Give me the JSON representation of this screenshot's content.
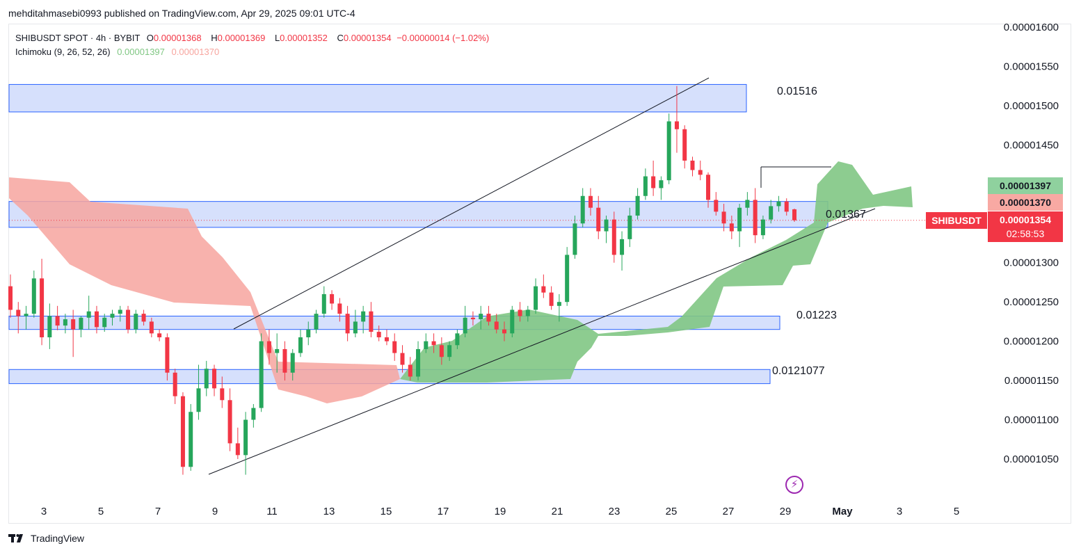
{
  "header": {
    "publish_text": "mehditahmasebi0993 published on TradingView.com, Apr 29, 2025 09:01 UTC-4"
  },
  "legend": {
    "symbol_line": "SHIBUSDT SPOT · 4h · BYBIT",
    "open_label": "O",
    "open": "0.00001368",
    "high_label": "H",
    "high": "0.00001369",
    "low_label": "L",
    "low": "0.00001352",
    "close_label": "C",
    "close": "0.00001354",
    "change": "−0.00000014 (−1.02%)",
    "indicator_name": "Ichimoku (9, 26, 52, 26)",
    "indicator_val_1": "0.00001397",
    "indicator_val_2": "0.00001370"
  },
  "price_tags": {
    "upper": "0.00001397",
    "lower": "0.00001370",
    "last": "0.00001354",
    "countdown": "02:58:53",
    "symbol": "SHIBUSDT"
  },
  "footer": {
    "brand": "TradingView"
  },
  "colors": {
    "up": "#089981",
    "up_candle": "#26a65b",
    "down": "#f23645",
    "zone_fill": "#d4defc",
    "zone_border": "#2962ff",
    "cloud_bull": "#81c784",
    "cloud_bear": "#f7a59f"
  },
  "chart_data": {
    "type": "candlestick",
    "symbol": "SHIBUSDT",
    "timeframe": "4h",
    "y_axis": {
      "range": [
        1.01e-05,
        1.62e-05
      ],
      "ticks": [
        "0.00001600",
        "0.00001550",
        "0.00001500",
        "0.00001450",
        "0.00001400",
        "0.00001350",
        "0.00001300",
        "0.00001250",
        "0.00001200",
        "0.00001150",
        "0.00001100",
        "0.00001050"
      ]
    },
    "x_axis": {
      "ticks": [
        "3",
        "5",
        "7",
        "9",
        "11",
        "13",
        "15",
        "17",
        "19",
        "21",
        "23",
        "25",
        "27",
        "29",
        "May",
        "3",
        "5"
      ]
    },
    "zones": [
      {
        "label": "0.01516",
        "low": 1.492e-05,
        "high": 1.527e-05
      },
      {
        "label": "0.01367",
        "low": 1.345e-05,
        "high": 1.378e-05
      },
      {
        "label": "0.01223",
        "low": 1.215e-05,
        "high": 1.232e-05
      },
      {
        "label": "0.0121077",
        "low": 1.146e-05,
        "high": 1.164e-05
      }
    ],
    "trendlines": [
      {
        "from": [
          "Apr 9",
          1.032e-05
        ],
        "to": [
          "May 1",
          1.379e-05
        ]
      },
      {
        "from": [
          "Apr 9",
          1.212e-05
        ],
        "to": [
          "Apr 26",
          1.536e-05
        ]
      },
      {
        "from": [
          "Apr 28",
          1.421e-05
        ],
        "to": [
          "Apr 30",
          1.421e-05
        ]
      }
    ],
    "current_price": 1.354e-05,
    "candles_ohlc": [
      [
        1.27e-05,
        1.285e-05,
        1.23e-05,
        1.24e-05
      ],
      [
        1.24e-05,
        1.25e-05,
        1.21e-05,
        1.232e-05
      ],
      [
        1.232e-05,
        1.245e-05,
        1.215e-05,
        1.235e-05
      ],
      [
        1.235e-05,
        1.29e-05,
        1.23e-05,
        1.28e-05
      ],
      [
        1.28e-05,
        1.305e-05,
        1.195e-05,
        1.205e-05
      ],
      [
        1.205e-05,
        1.248e-05,
        1.19e-05,
        1.232e-05
      ],
      [
        1.232e-05,
        1.245e-05,
        1.214e-05,
        1.22e-05
      ],
      [
        1.22e-05,
        1.235e-05,
        1.21e-05,
        1.228e-05
      ],
      [
        1.228e-05,
        1.24e-05,
        1.18e-05,
        1.215e-05
      ],
      [
        1.215e-05,
        1.232e-05,
        1.205e-05,
        1.23e-05
      ],
      [
        1.23e-05,
        1.258e-05,
        1.215e-05,
        1.238e-05
      ],
      [
        1.238e-05,
        1.245e-05,
        1.21e-05,
        1.218e-05
      ],
      [
        1.218e-05,
        1.235e-05,
        1.212e-05,
        1.23e-05
      ],
      [
        1.23e-05,
        1.24e-05,
        1.22e-05,
        1.235e-05
      ],
      [
        1.235e-05,
        1.245e-05,
        1.225e-05,
        1.24e-05
      ],
      [
        1.24e-05,
        1.245e-05,
        1.21e-05,
        1.215e-05
      ],
      [
        1.215e-05,
        1.24e-05,
        1.21e-05,
        1.235e-05
      ],
      [
        1.235e-05,
        1.24e-05,
        1.22e-05,
        1.225e-05
      ],
      [
        1.225e-05,
        1.23e-05,
        1.205e-05,
        1.21e-05
      ],
      [
        1.21e-05,
        1.215e-05,
        1.2e-05,
        1.205e-05
      ],
      [
        1.205e-05,
        1.21e-05,
        1.15e-05,
        1.16e-05
      ],
      [
        1.16e-05,
        1.165e-05,
        1.12e-05,
        1.13e-05
      ],
      [
        1.13e-05,
        1.135e-05,
        1.03e-05,
        1.04e-05
      ],
      [
        1.04e-05,
        1.12e-05,
        1.035e-05,
        1.11e-05
      ],
      [
        1.11e-05,
        1.17e-05,
        1.1e-05,
        1.14e-05
      ],
      [
        1.14e-05,
        1.175e-05,
        1.13e-05,
        1.165e-05
      ],
      [
        1.165e-05,
        1.17e-05,
        1.13e-05,
        1.14e-05
      ],
      [
        1.14e-05,
        1.155e-05,
        1.115e-05,
        1.125e-05
      ],
      [
        1.125e-05,
        1.14e-05,
        1.06e-05,
        1.07e-05
      ],
      [
        1.07e-05,
        1.09e-05,
        1.05e-05,
        1.055e-05
      ],
      [
        1.055e-05,
        1.11e-05,
        1.03e-05,
        1.1e-05
      ],
      [
        1.1e-05,
        1.12e-05,
        1.09e-05,
        1.115e-05
      ],
      [
        1.115e-05,
        1.21e-05,
        1.11e-05,
        1.2e-05
      ],
      [
        1.2e-05,
        1.215e-05,
        1.17e-05,
        1.185e-05
      ],
      [
        1.185e-05,
        1.21e-05,
        1.16e-05,
        1.19e-05
      ],
      [
        1.19e-05,
        1.2e-05,
        1.15e-05,
        1.16e-05
      ],
      [
        1.16e-05,
        1.19e-05,
        1.15e-05,
        1.185e-05
      ],
      [
        1.185e-05,
        1.215e-05,
        1.18e-05,
        1.205e-05
      ],
      [
        1.205e-05,
        1.225e-05,
        1.195e-05,
        1.215e-05
      ],
      [
        1.215e-05,
        1.24e-05,
        1.21e-05,
        1.235e-05
      ],
      [
        1.235e-05,
        1.27e-05,
        1.23e-05,
        1.26e-05
      ],
      [
        1.26e-05,
        1.265e-05,
        1.24e-05,
        1.248e-05
      ],
      [
        1.248e-05,
        1.255e-05,
        1.225e-05,
        1.235e-05
      ],
      [
        1.235e-05,
        1.245e-05,
        1.2e-05,
        1.21e-05
      ],
      [
        1.21e-05,
        1.24e-05,
        1.205e-05,
        1.225e-05
      ],
      [
        1.225e-05,
        1.245e-05,
        1.21e-05,
        1.238e-05
      ],
      [
        1.238e-05,
        1.25e-05,
        1.205e-05,
        1.212e-05
      ],
      [
        1.212e-05,
        1.22e-05,
        1.2e-05,
        1.205e-05
      ],
      [
        1.205e-05,
        1.215e-05,
        1.195e-05,
        1.2e-05
      ],
      [
        1.2e-05,
        1.21e-05,
        1.175e-05,
        1.185e-05
      ],
      [
        1.185e-05,
        1.195e-05,
        1.16e-05,
        1.17e-05
      ],
      [
        1.17e-05,
        1.18e-05,
        1.15e-05,
        1.155e-05
      ],
      [
        1.155e-05,
        1.2e-05,
        1.15e-05,
        1.19e-05
      ],
      [
        1.19e-05,
        1.21e-05,
        1.185e-05,
        1.2e-05
      ],
      [
        1.2e-05,
        1.21e-05,
        1.185e-05,
        1.195e-05
      ],
      [
        1.195e-05,
        1.205e-05,
        1.17e-05,
        1.18e-05
      ],
      [
        1.18e-05,
        1.2e-05,
        1.175e-05,
        1.195e-05
      ],
      [
        1.195e-05,
        1.215e-05,
        1.19e-05,
        1.21e-05
      ],
      [
        1.21e-05,
        1.245e-05,
        1.205e-05,
        1.23e-05
      ],
      [
        1.23e-05,
        1.238e-05,
        1.22e-05,
        1.228e-05
      ],
      [
        1.228e-05,
        1.245e-05,
        1.215e-05,
        1.235e-05
      ],
      [
        1.235e-05,
        1.245e-05,
        1.22e-05,
        1.225e-05
      ],
      [
        1.225e-05,
        1.235e-05,
        1.21e-05,
        1.215e-05
      ],
      [
        1.215e-05,
        1.225e-05,
        1.2e-05,
        1.21e-05
      ],
      [
        1.21e-05,
        1.245e-05,
        1.205e-05,
        1.24e-05
      ],
      [
        1.24e-05,
        1.25e-05,
        1.225e-05,
        1.232e-05
      ],
      [
        1.232e-05,
        1.245e-05,
        1.225e-05,
        1.24e-05
      ],
      [
        1.24e-05,
        1.28e-05,
        1.235e-05,
        1.27e-05
      ],
      [
        1.27e-05,
        1.285e-05,
        1.255e-05,
        1.262e-05
      ],
      [
        1.262e-05,
        1.27e-05,
        1.24e-05,
        1.245e-05
      ],
      [
        1.245e-05,
        1.26e-05,
        1.225e-05,
        1.25e-05
      ],
      [
        1.25e-05,
        1.32e-05,
        1.245e-05,
        1.31e-05
      ],
      [
        1.31e-05,
        1.36e-05,
        1.305e-05,
        1.35e-05
      ],
      [
        1.35e-05,
        1.395e-05,
        1.345e-05,
        1.385e-05
      ],
      [
        1.385e-05,
        1.395e-05,
        1.36e-05,
        1.37e-05
      ],
      [
        1.37e-05,
        1.385e-05,
        1.33e-05,
        1.34e-05
      ],
      [
        1.34e-05,
        1.36e-05,
        1.325e-05,
        1.355e-05
      ],
      [
        1.355e-05,
        1.365e-05,
        1.3e-05,
        1.31e-05
      ],
      [
        1.31e-05,
        1.34e-05,
        1.29e-05,
        1.33e-05
      ],
      [
        1.33e-05,
        1.37e-05,
        1.32e-05,
        1.36e-05
      ],
      [
        1.36e-05,
        1.395e-05,
        1.355e-05,
        1.385e-05
      ],
      [
        1.385e-05,
        1.42e-05,
        1.38e-05,
        1.41e-05
      ],
      [
        1.41e-05,
        1.43e-05,
        1.385e-05,
        1.395e-05
      ],
      [
        1.395e-05,
        1.41e-05,
        1.38e-05,
        1.405e-05
      ],
      [
        1.405e-05,
        1.49e-05,
        1.4e-05,
        1.48e-05
      ],
      [
        1.48e-05,
        1.525e-05,
        1.44e-05,
        1.47e-05
      ],
      [
        1.47e-05,
        1.475e-05,
        1.42e-05,
        1.43e-05
      ],
      [
        1.43e-05,
        1.435e-05,
        1.41e-05,
        1.418e-05
      ],
      [
        1.418e-05,
        1.43e-05,
        1.405e-05,
        1.412e-05
      ],
      [
        1.412e-05,
        1.415e-05,
        1.37e-05,
        1.38e-05
      ],
      [
        1.38e-05,
        1.39e-05,
        1.36e-05,
        1.365e-05
      ],
      [
        1.365e-05,
        1.375e-05,
        1.34e-05,
        1.35e-05
      ],
      [
        1.35e-05,
        1.36e-05,
        1.33e-05,
        1.34e-05
      ],
      [
        1.34e-05,
        1.375e-05,
        1.32e-05,
        1.37e-05
      ],
      [
        1.37e-05,
        1.39e-05,
        1.36e-05,
        1.38e-05
      ],
      [
        1.38e-05,
        1.395e-05,
        1.325e-05,
        1.335e-05
      ],
      [
        1.335e-05,
        1.36e-05,
        1.33e-05,
        1.355e-05
      ],
      [
        1.355e-05,
        1.38e-05,
        1.35e-05,
        1.372e-05
      ],
      [
        1.372e-05,
        1.385e-05,
        1.365e-05,
        1.378e-05
      ],
      [
        1.378e-05,
        1.382e-05,
        1.36e-05,
        1.365e-05
      ],
      [
        1.368e-05,
        1.369e-05,
        1.352e-05,
        1.354e-05
      ]
    ]
  }
}
